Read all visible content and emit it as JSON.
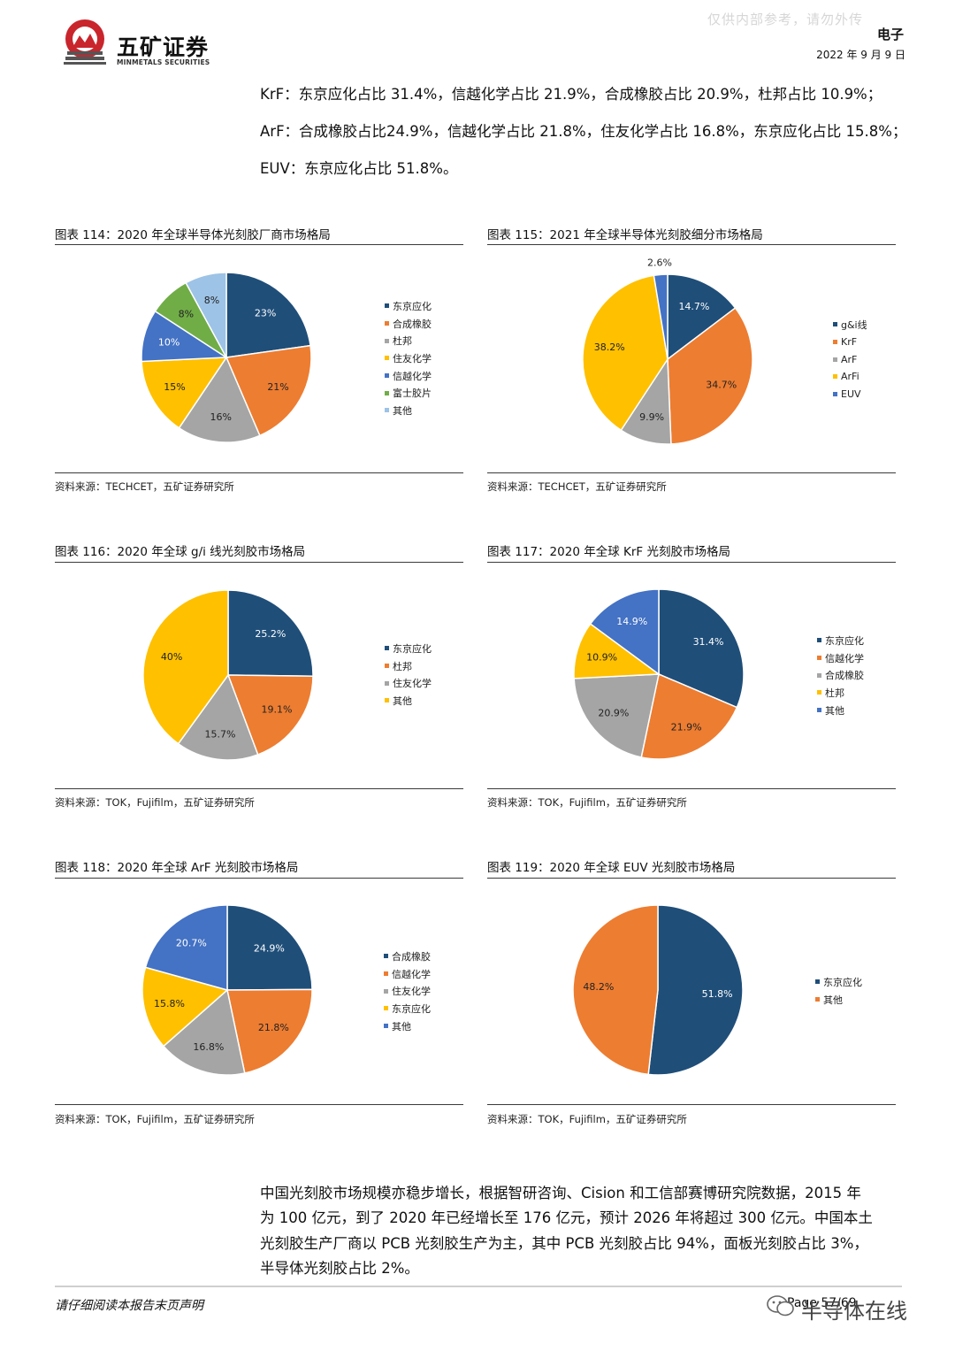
{
  "header": {
    "logo_name": "五矿证券",
    "logo_sub": "MINMETALS SECURITIES",
    "watermark": "仅供内部参考，请勿外传",
    "category": "电子",
    "date": "2022 年 9 月 9 日"
  },
  "intro_lines": [
    "KrF：东京应化占比 31.4%，信越化学占比 21.9%，合成橡胶占比 20.9%，杜邦占比 10.9%；",
    "ArF：合成橡胶占比24.9%，信越化学占比 21.8%，住友化学占比 16.8%，东京应化占比 15.8%；",
    "EUV：东京应化占比 51.8%。"
  ],
  "chart_data": [
    {
      "type": "pie",
      "title": "图表 114：2020 年全球半导体光刻胶厂商市场格局",
      "source": "资料来源：TECHCET，五矿证券研究所",
      "categories": [
        "东京应化",
        "合成橡胶",
        "杜邦",
        "住友化学",
        "信越化学",
        "富士胶片",
        "其他"
      ],
      "values": [
        23,
        21,
        16,
        15,
        10,
        8,
        8
      ],
      "labels": [
        "23%",
        "21%",
        "16%",
        "15%",
        "10%",
        "8%",
        "8%"
      ],
      "colors": [
        "#1f4e79",
        "#ed7d31",
        "#a5a5a5",
        "#ffc000",
        "#4472c4",
        "#70ad47",
        "#9dc3e6"
      ]
    },
    {
      "type": "pie",
      "title": "图表 115：2021 年全球半导体光刻胶细分市场格局",
      "source": "资料来源：TECHCET，五矿证券研究所",
      "categories": [
        "g&i线",
        "KrF",
        "ArF",
        "ArFi",
        "EUV"
      ],
      "values": [
        14.7,
        34.7,
        9.9,
        38.2,
        2.6
      ],
      "labels": [
        "14.7%",
        "34.7%",
        "9.9%",
        "38.2%",
        "2.6%"
      ],
      "colors": [
        "#1f4e79",
        "#ed7d31",
        "#a5a5a5",
        "#ffc000",
        "#4472c4"
      ]
    },
    {
      "type": "pie",
      "title": "图表 116：2020 年全球 g/i 线光刻胶市场格局",
      "source": "资料来源：TOK，Fujifilm，五矿证券研究所",
      "categories": [
        "东京应化",
        "杜邦",
        "住友化学",
        "其他"
      ],
      "values": [
        25.2,
        19.1,
        15.7,
        40
      ],
      "labels": [
        "25.2%",
        "19.1%",
        "15.7%",
        "40%"
      ],
      "colors": [
        "#1f4e79",
        "#ed7d31",
        "#a5a5a5",
        "#ffc000"
      ]
    },
    {
      "type": "pie",
      "title": "图表 117：2020 年全球 KrF 光刻胶市场格局",
      "source": "资料来源：TOK，Fujifilm，五矿证券研究所",
      "categories": [
        "东京应化",
        "信越化学",
        "合成橡胶",
        "杜邦",
        "其他"
      ],
      "values": [
        31.4,
        21.9,
        20.9,
        10.9,
        14.9
      ],
      "labels": [
        "31.4%",
        "21.9%",
        "20.9%",
        "10.9%",
        "14.9%"
      ],
      "colors": [
        "#1f4e79",
        "#ed7d31",
        "#a5a5a5",
        "#ffc000",
        "#4472c4"
      ]
    },
    {
      "type": "pie",
      "title": "图表 118：2020 年全球 ArF 光刻胶市场格局",
      "source": "资料来源：TOK，Fujifilm，五矿证券研究所",
      "categories": [
        "合成橡胶",
        "信越化学",
        "住友化学",
        "东京应化",
        "其他"
      ],
      "values": [
        24.9,
        21.8,
        16.8,
        15.8,
        20.7
      ],
      "labels": [
        "24.9%",
        "21.8%",
        "16.8%",
        "15.8%",
        "20.7%"
      ],
      "colors": [
        "#1f4e79",
        "#ed7d31",
        "#a5a5a5",
        "#ffc000",
        "#4472c4"
      ]
    },
    {
      "type": "pie",
      "title": "图表 119：2020 年全球 EUV 光刻胶市场格局",
      "source": "资料来源：TOK，Fujifilm，五矿证券研究所",
      "categories": [
        "东京应化",
        "其他"
      ],
      "values": [
        51.8,
        48.2
      ],
      "labels": [
        "51.8%",
        "48.2%"
      ],
      "colors": [
        "#1f4e79",
        "#ed7d31"
      ]
    }
  ],
  "body_lines": [
    "中国光刻胶市场规模亦稳步增长，根据智研咨询、Cision 和工信部赛博研究院数据，2015 年",
    "为 100 亿元，到了 2020 年已经增长至 176 亿元，预计 2026 年将超过 300 亿元。中国本土",
    "光刻胶生产厂商以 PCB 光刻胶生产为主，其中 PCB 光刻胶占比 94%，面板光刻胶占比 3%，",
    "半导体光刻胶占比 2%。"
  ],
  "footer": {
    "note": "请仔细阅读本报告末页声明",
    "page_mark": "Page 57/69",
    "wechat_mark": "半导体在线"
  }
}
